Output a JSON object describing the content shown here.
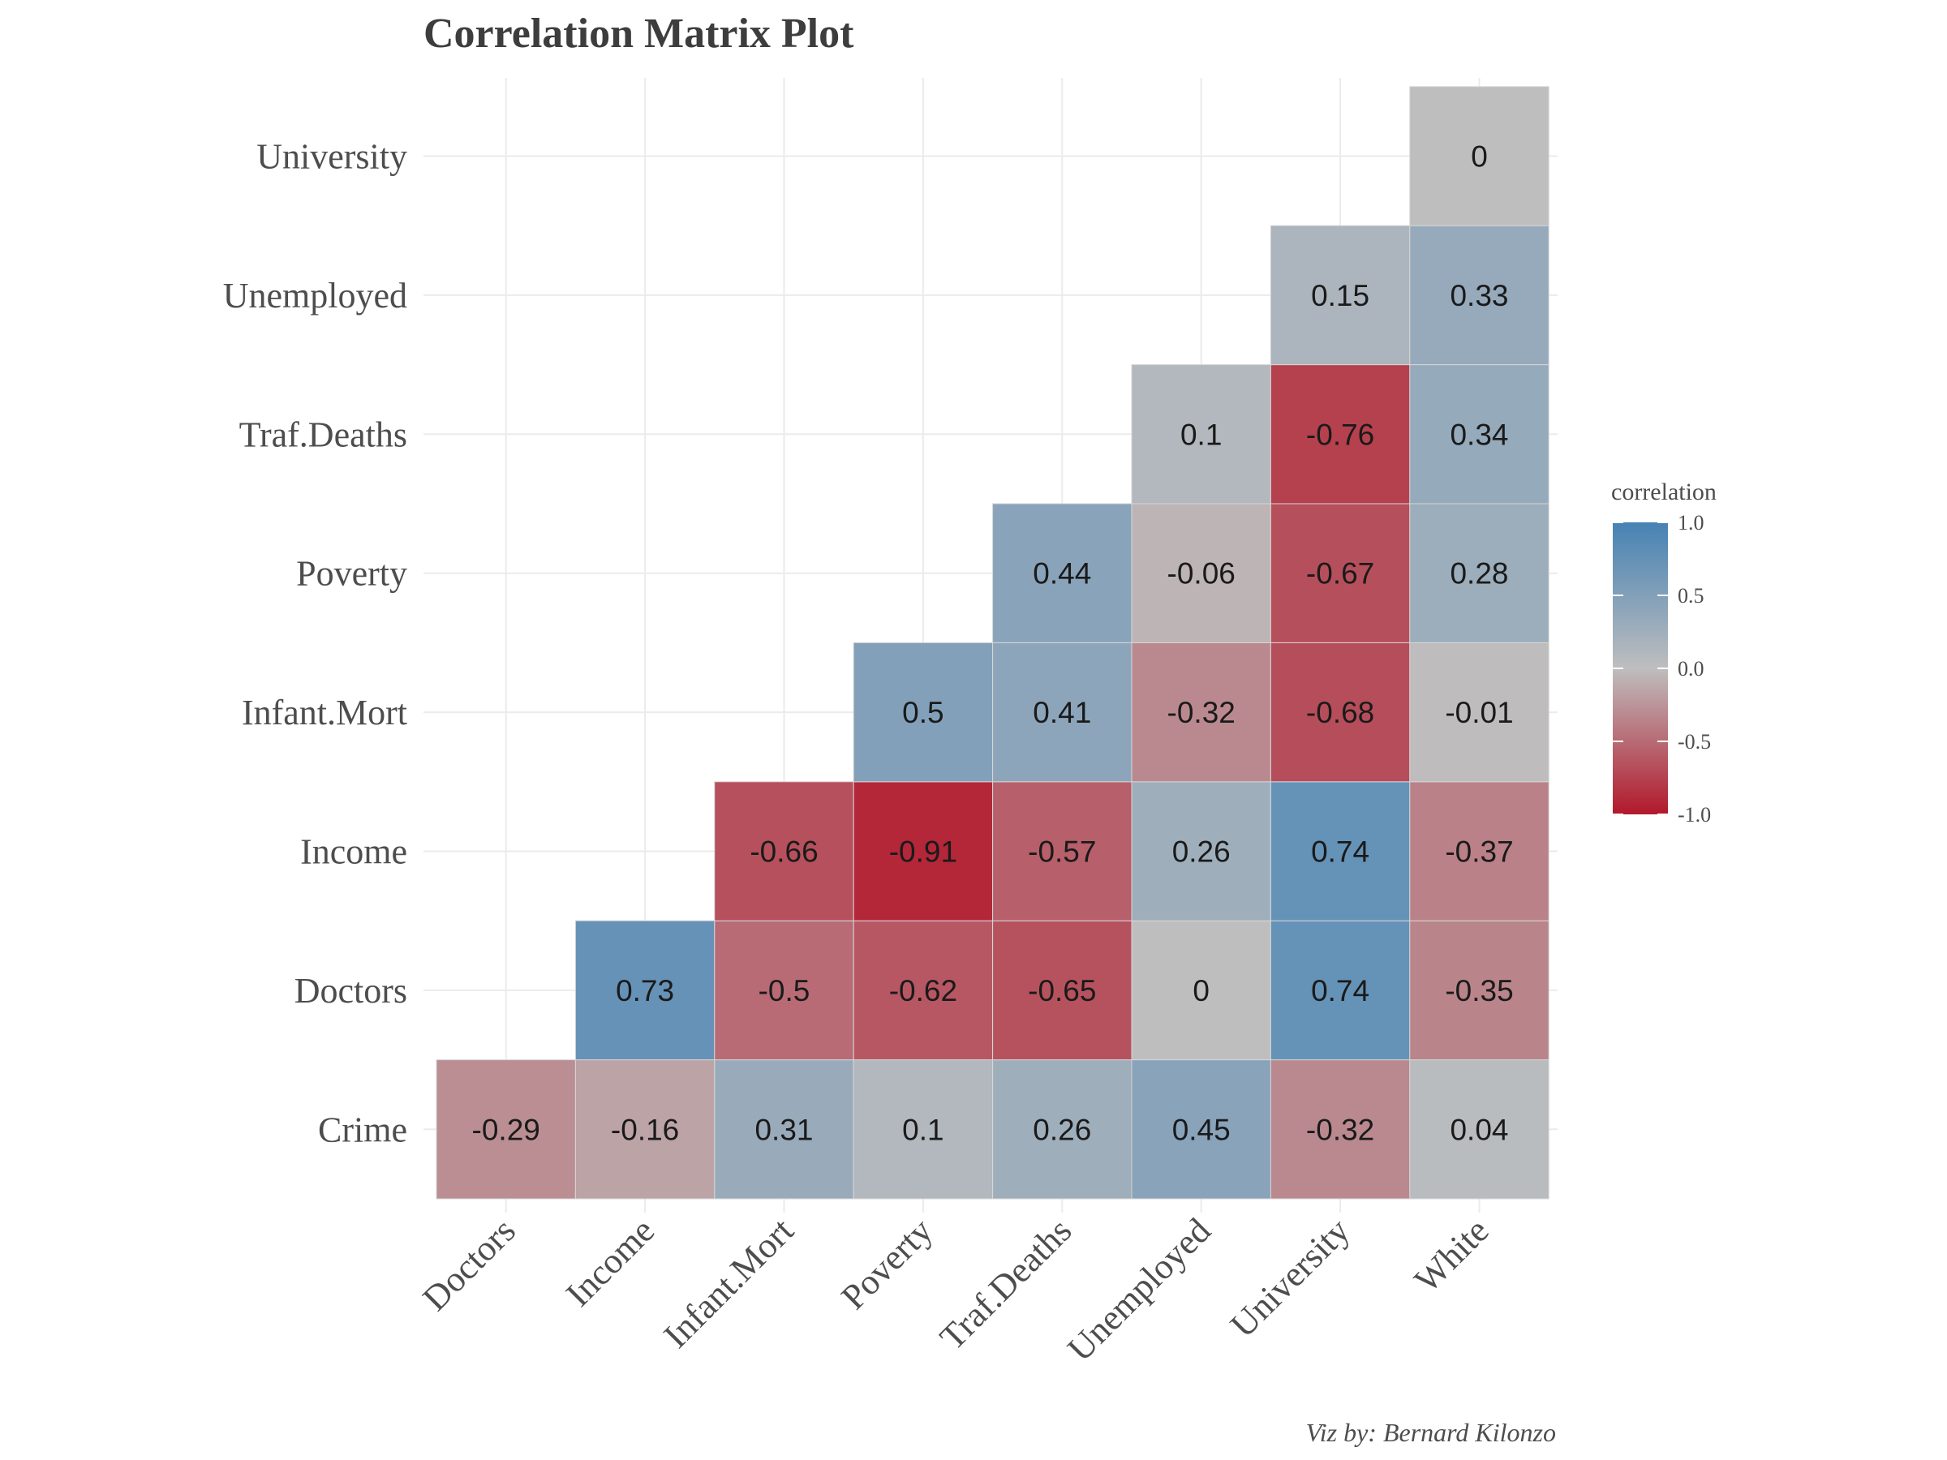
{
  "chart_data": {
    "type": "heatmap",
    "title": "Correlation Matrix Plot",
    "caption": "Viz by: Bernard Kilonzo",
    "x_categories": [
      "Doctors",
      "Income",
      "Infant.Mort",
      "Poverty",
      "Traf.Deaths",
      "Unemployed",
      "University",
      "White"
    ],
    "y_categories": [
      "Crime",
      "Doctors",
      "Income",
      "Infant.Mort",
      "Poverty",
      "Traf.Deaths",
      "Unemployed",
      "University"
    ],
    "cells": [
      {
        "x": "Doctors",
        "y": "Crime",
        "value": -0.29,
        "label": "-0.29"
      },
      {
        "x": "Income",
        "y": "Crime",
        "value": -0.16,
        "label": "-0.16"
      },
      {
        "x": "Infant.Mort",
        "y": "Crime",
        "value": 0.31,
        "label": "0.31"
      },
      {
        "x": "Poverty",
        "y": "Crime",
        "value": 0.1,
        "label": "0.1"
      },
      {
        "x": "Traf.Deaths",
        "y": "Crime",
        "value": 0.26,
        "label": "0.26"
      },
      {
        "x": "Unemployed",
        "y": "Crime",
        "value": 0.45,
        "label": "0.45"
      },
      {
        "x": "University",
        "y": "Crime",
        "value": -0.32,
        "label": "-0.32"
      },
      {
        "x": "White",
        "y": "Crime",
        "value": 0.04,
        "label": "0.04"
      },
      {
        "x": "Income",
        "y": "Doctors",
        "value": 0.73,
        "label": "0.73"
      },
      {
        "x": "Infant.Mort",
        "y": "Doctors",
        "value": -0.5,
        "label": "-0.5"
      },
      {
        "x": "Poverty",
        "y": "Doctors",
        "value": -0.62,
        "label": "-0.62"
      },
      {
        "x": "Traf.Deaths",
        "y": "Doctors",
        "value": -0.65,
        "label": "-0.65"
      },
      {
        "x": "Unemployed",
        "y": "Doctors",
        "value": 0,
        "label": "0"
      },
      {
        "x": "University",
        "y": "Doctors",
        "value": 0.74,
        "label": "0.74"
      },
      {
        "x": "White",
        "y": "Doctors",
        "value": -0.35,
        "label": "-0.35"
      },
      {
        "x": "Infant.Mort",
        "y": "Income",
        "value": -0.66,
        "label": "-0.66"
      },
      {
        "x": "Poverty",
        "y": "Income",
        "value": -0.91,
        "label": "-0.91"
      },
      {
        "x": "Traf.Deaths",
        "y": "Income",
        "value": -0.57,
        "label": "-0.57"
      },
      {
        "x": "Unemployed",
        "y": "Income",
        "value": 0.26,
        "label": "0.26"
      },
      {
        "x": "University",
        "y": "Income",
        "value": 0.74,
        "label": "0.74"
      },
      {
        "x": "White",
        "y": "Income",
        "value": -0.37,
        "label": "-0.37"
      },
      {
        "x": "Poverty",
        "y": "Infant.Mort",
        "value": 0.5,
        "label": "0.5"
      },
      {
        "x": "Traf.Deaths",
        "y": "Infant.Mort",
        "value": 0.41,
        "label": "0.41"
      },
      {
        "x": "Unemployed",
        "y": "Infant.Mort",
        "value": -0.32,
        "label": "-0.32"
      },
      {
        "x": "University",
        "y": "Infant.Mort",
        "value": -0.68,
        "label": "-0.68"
      },
      {
        "x": "White",
        "y": "Infant.Mort",
        "value": -0.01,
        "label": "-0.01"
      },
      {
        "x": "Traf.Deaths",
        "y": "Poverty",
        "value": 0.44,
        "label": "0.44"
      },
      {
        "x": "Unemployed",
        "y": "Poverty",
        "value": -0.06,
        "label": "-0.06"
      },
      {
        "x": "University",
        "y": "Poverty",
        "value": -0.67,
        "label": "-0.67"
      },
      {
        "x": "White",
        "y": "Poverty",
        "value": 0.28,
        "label": "0.28"
      },
      {
        "x": "Unemployed",
        "y": "Traf.Deaths",
        "value": 0.1,
        "label": "0.1"
      },
      {
        "x": "University",
        "y": "Traf.Deaths",
        "value": -0.76,
        "label": "-0.76"
      },
      {
        "x": "White",
        "y": "Traf.Deaths",
        "value": 0.34,
        "label": "0.34"
      },
      {
        "x": "University",
        "y": "Unemployed",
        "value": 0.15,
        "label": "0.15"
      },
      {
        "x": "White",
        "y": "Unemployed",
        "value": 0.33,
        "label": "0.33"
      },
      {
        "x": "White",
        "y": "University",
        "value": 0,
        "label": "0"
      }
    ],
    "legend": {
      "title": "correlation",
      "position": "right",
      "range": [
        -1.0,
        1.0
      ],
      "ticks": [
        {
          "value": 1.0,
          "label": "1.0"
        },
        {
          "value": 0.5,
          "label": "0.5"
        },
        {
          "value": 0.0,
          "label": "0.0"
        },
        {
          "value": -0.5,
          "label": "-0.5"
        },
        {
          "value": -1.0,
          "label": "-1.0"
        }
      ],
      "colors": {
        "low": "#b2182b",
        "mid": "#bebebe",
        "high": "#4682b4"
      }
    },
    "grid": true
  }
}
